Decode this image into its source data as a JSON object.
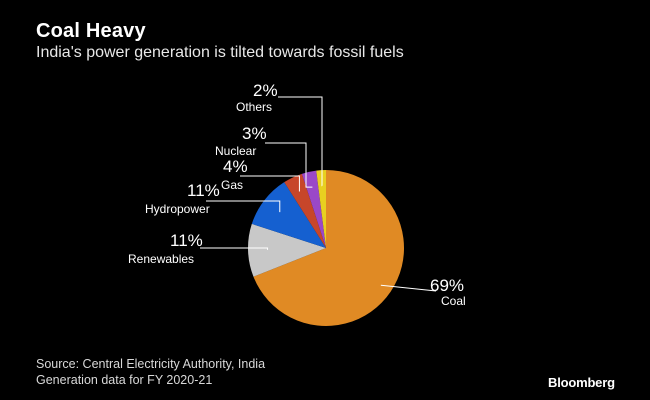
{
  "header": {
    "title": "Coal Heavy",
    "subtitle": "India's power generation is tilted towards fossil fuels"
  },
  "chart_data": {
    "type": "pie",
    "title": "Coal Heavy",
    "subtitle": "India's power generation is tilted towards fossil fuels",
    "unit": "%",
    "start": "12 o'clock, clockwise",
    "slices": [
      {
        "label": "Coal",
        "value": 69,
        "display": "69%",
        "color": "#E08A24"
      },
      {
        "label": "Renewables",
        "value": 11,
        "display": "11%",
        "color": "#C8C8C8"
      },
      {
        "label": "Hydropower",
        "value": 11,
        "display": "11%",
        "color": "#1560D0"
      },
      {
        "label": "Gas",
        "value": 4,
        "display": "4%",
        "color": "#C7462A"
      },
      {
        "label": "Nuclear",
        "value": 3,
        "display": "3%",
        "color": "#9A48C8"
      },
      {
        "label": "Others",
        "value": 2,
        "display": "2%",
        "color": "#E8D020"
      }
    ]
  },
  "footer": {
    "source_line1": "Source: Central Electricity Authority, India",
    "source_line2": "Generation data for FY 2020-21",
    "brand": "Bloomberg"
  }
}
